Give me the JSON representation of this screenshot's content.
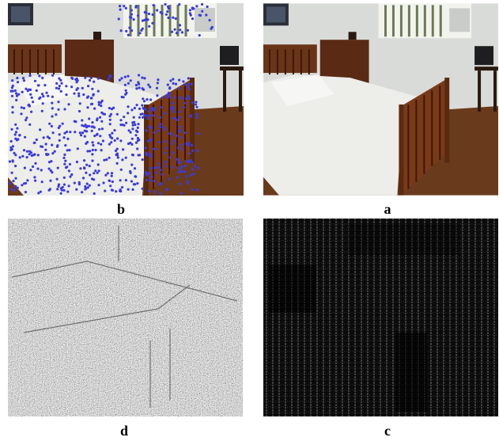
{
  "panels": [
    {
      "label": "b"
    },
    {
      "label": "a"
    },
    {
      "label": "d"
    },
    {
      "label": "c"
    }
  ]
}
